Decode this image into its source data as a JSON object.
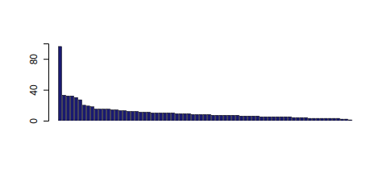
{
  "chart_data": {
    "type": "bar",
    "color": "#191970",
    "categories": [
      null,
      null,
      null,
      null,
      null,
      null,
      null,
      null,
      null,
      null,
      null,
      null,
      null,
      null,
      null,
      null,
      null,
      null,
      null,
      null,
      null,
      null,
      null,
      null,
      null,
      null,
      null,
      null,
      null,
      null,
      null,
      null,
      null,
      null,
      null,
      null,
      null,
      null,
      null,
      null,
      null,
      null,
      null,
      null,
      null,
      null,
      null,
      null,
      null,
      null,
      null,
      null,
      null,
      null,
      null,
      null,
      null,
      null,
      null,
      null,
      null,
      null,
      null,
      null,
      null,
      null,
      null,
      null,
      null,
      null,
      null,
      null,
      null
    ],
    "values": [
      96,
      33,
      32,
      32,
      30,
      27,
      20,
      19,
      18,
      15,
      15,
      15,
      15,
      14,
      14,
      13,
      13,
      12,
      12,
      12,
      11,
      11,
      11,
      10,
      10,
      10,
      10,
      10,
      10,
      9,
      9,
      9,
      9,
      8,
      8,
      8,
      8,
      8,
      7,
      7,
      7,
      7,
      7,
      7,
      7,
      6,
      6,
      6,
      6,
      6,
      5,
      5,
      5,
      5,
      5,
      5,
      5,
      5,
      4,
      4,
      4,
      4,
      3,
      3,
      3,
      3,
      3,
      3,
      3,
      3,
      2,
      2,
      1
    ],
    "ylim": [
      0,
      100
    ],
    "yticks": [
      0,
      40,
      80
    ],
    "grid": false,
    "tick_labels": "y"
  }
}
